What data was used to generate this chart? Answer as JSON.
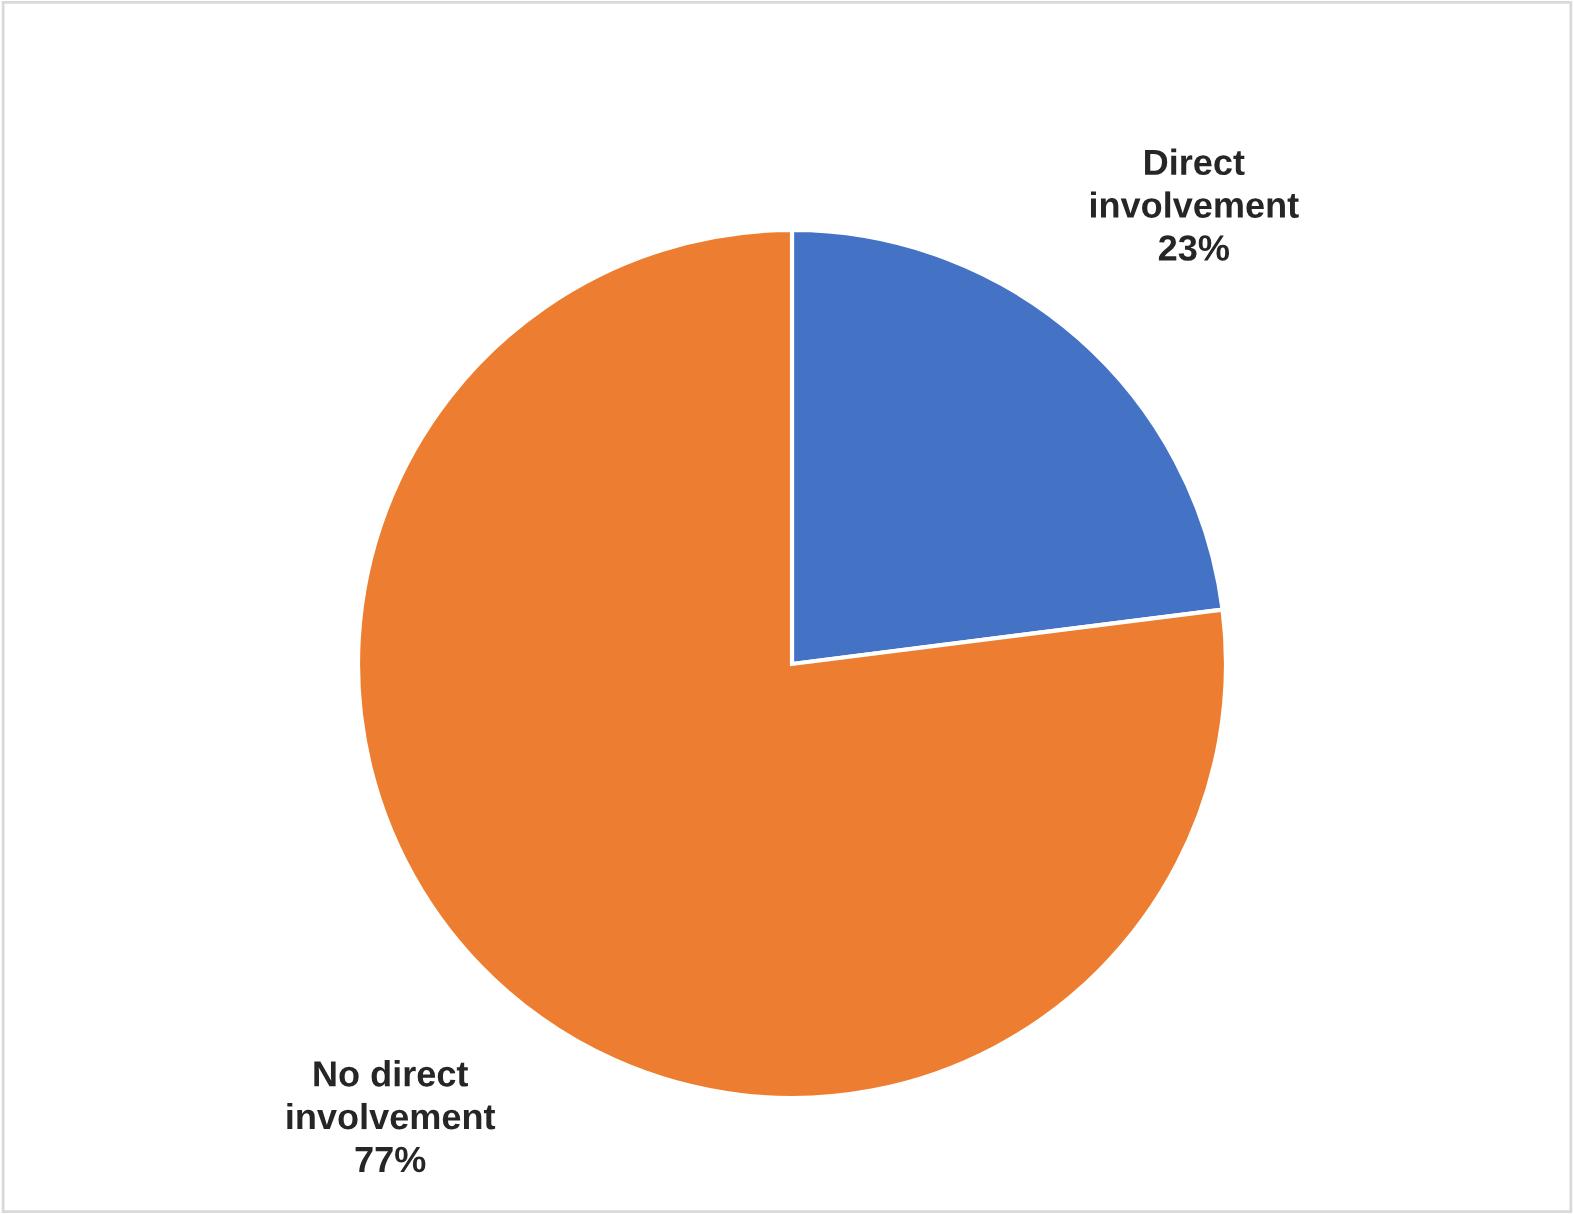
{
  "chart_data": {
    "type": "pie",
    "categories": [
      "Direct involvement",
      "No direct involvement"
    ],
    "values": [
      23,
      77
    ],
    "value_labels": [
      "23%",
      "77%"
    ],
    "colors": [
      "#4472c4",
      "#ed7d31"
    ],
    "legend": false
  }
}
